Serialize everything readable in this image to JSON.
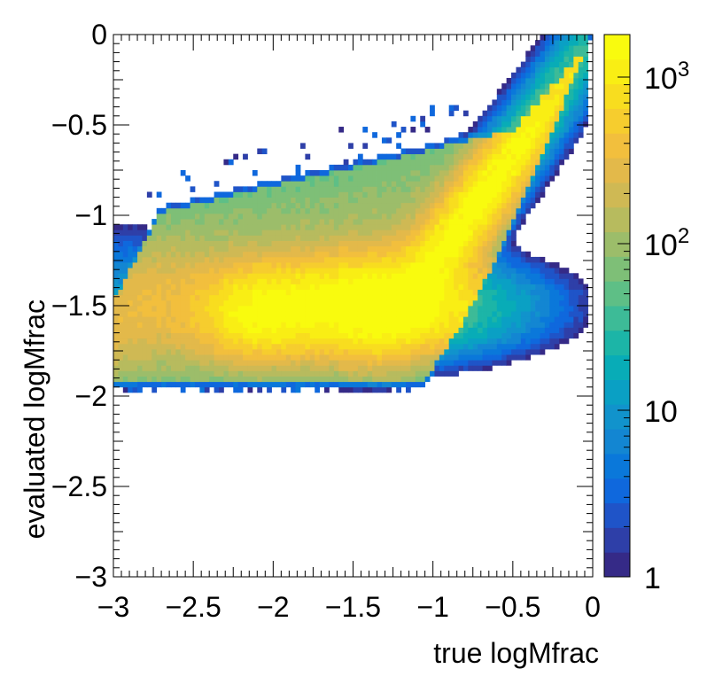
{
  "chart_data": {
    "type": "heatmap",
    "title": "",
    "xlabel": "true logMfrac",
    "ylabel": "evaluated logMfrac",
    "xlim": [
      -3,
      0
    ],
    "ylim": [
      -3,
      0
    ],
    "x_ticks": [
      -3,
      -2.5,
      -2,
      -1.5,
      -1,
      -0.5,
      0
    ],
    "x_tick_labels": [
      "−3",
      "−2.5",
      "−2",
      "−1.5",
      "−1",
      "−0.5",
      "0"
    ],
    "y_ticks": [
      0,
      -0.5,
      -1,
      -1.5,
      -2,
      -2.5,
      -3
    ],
    "y_tick_labels": [
      "0",
      "−0.5",
      "−1",
      "−1.5",
      "−2",
      "−2.5",
      "−3"
    ],
    "colorbar": {
      "scale": "log",
      "range": [
        1,
        1800
      ],
      "ticks": [
        1,
        10,
        100,
        1000
      ],
      "tick_labels": [
        {
          "base": "1",
          "exp": ""
        },
        {
          "base": "10",
          "exp": ""
        },
        {
          "base": "10",
          "exp": "2"
        },
        {
          "base": "10",
          "exp": "3"
        }
      ],
      "colors": [
        "#352a87",
        "#2e3fa8",
        "#1f54c8",
        "#0f68dd",
        "#0a78da",
        "#1386d2",
        "#1193cc",
        "#0aa0c4",
        "#08acb7",
        "#1cb5a7",
        "#3dbb97",
        "#5ebf86",
        "#7ebf77",
        "#9cbd6a",
        "#b7bb5e",
        "#cfb954",
        "#e3b94a",
        "#f2bf3d",
        "#f6cd2e",
        "#f8dd1f",
        "#f9ee14",
        "#f9fb0e"
      ]
    }
  }
}
